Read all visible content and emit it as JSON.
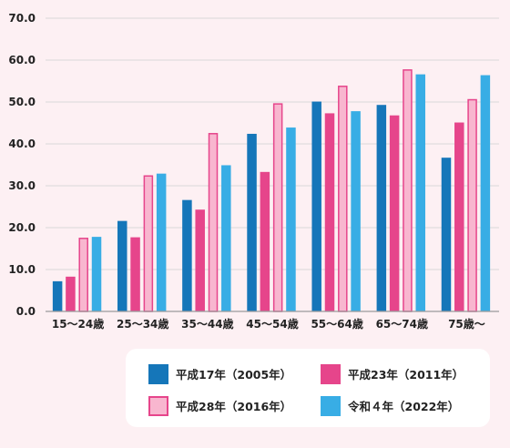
{
  "chart_data": {
    "type": "bar",
    "categories": [
      "15～24歳",
      "25～34歳",
      "35～44歳",
      "45～54歳",
      "55～64歳",
      "65～74歳",
      "75歳～"
    ],
    "series": [
      {
        "name": "平成17年（2005年）",
        "values": [
          7.2,
          21.6,
          26.6,
          42.4,
          50.1,
          49.3,
          36.7
        ],
        "color": "#1576b9",
        "stroke": "",
        "style": "solid"
      },
      {
        "name": "平成23年（2011年）",
        "values": [
          8.3,
          17.7,
          24.3,
          33.3,
          47.3,
          46.8,
          45.1
        ],
        "color": "#e6458b",
        "stroke": "",
        "style": "solid"
      },
      {
        "name": "平成28年（2016年）",
        "values": [
          17.6,
          32.5,
          42.6,
          49.7,
          53.9,
          57.8,
          50.7
        ],
        "color": "#f8b6cf",
        "stroke": "#e6458b",
        "style": "outlined"
      },
      {
        "name": "令和４年（2022年）",
        "values": [
          17.8,
          32.9,
          34.9,
          43.9,
          47.8,
          56.6,
          56.4
        ],
        "color": "#38ade5",
        "stroke": "",
        "style": "solid"
      }
    ],
    "y_ticks": [
      "0.0",
      "10.0",
      "20.0",
      "30.0",
      "40.0",
      "50.0",
      "60.0",
      "70.0"
    ],
    "ylim": [
      0,
      70
    ],
    "grid": true,
    "legend": "bottom-right"
  }
}
